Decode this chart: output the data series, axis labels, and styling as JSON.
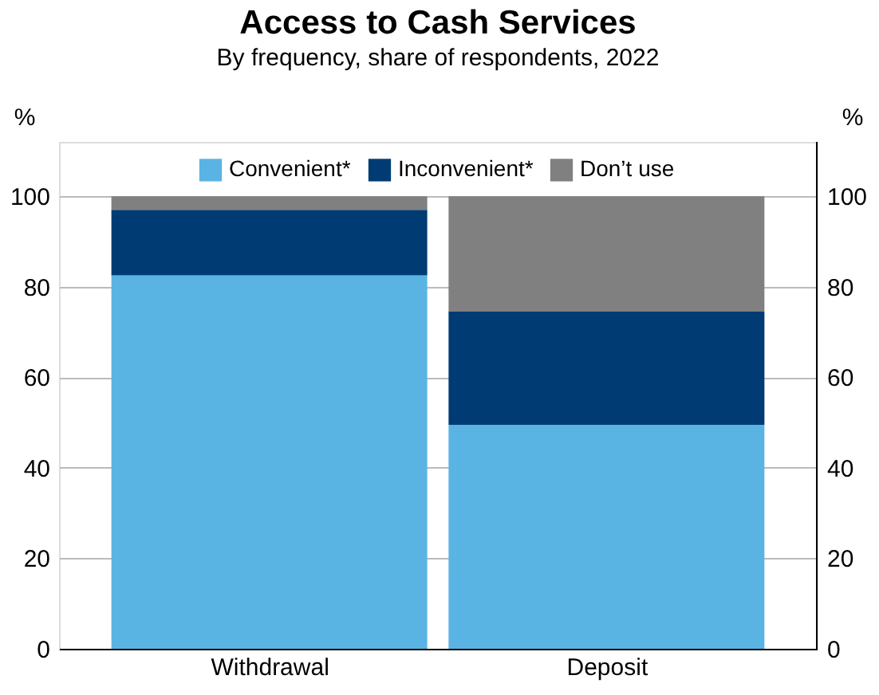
{
  "chart_data": {
    "type": "bar",
    "title": "Access to Cash Services",
    "subtitle": "By frequency, share of respondents, 2022",
    "categories": [
      "Withdrawal",
      "Deposit"
    ],
    "stacked": true,
    "series": [
      {
        "name": "Convenient*",
        "color": "#5ab4e3",
        "values": [
          82.5,
          49.5
        ]
      },
      {
        "name": "Inconvenient*",
        "color": "#003b73",
        "values": [
          14.5,
          25
        ]
      },
      {
        "name": "Don’t use",
        "color": "#808080",
        "values": [
          3,
          25.5
        ]
      }
    ],
    "ylabel": "%",
    "y2label": "%",
    "ylim": [
      0,
      112
    ],
    "yticks": [
      0,
      20,
      40,
      60,
      80,
      100
    ],
    "y2lim": [
      0,
      112
    ],
    "y2ticks": [
      0,
      20,
      40,
      60,
      80,
      100
    ],
    "grid": "y",
    "legend": "top"
  }
}
